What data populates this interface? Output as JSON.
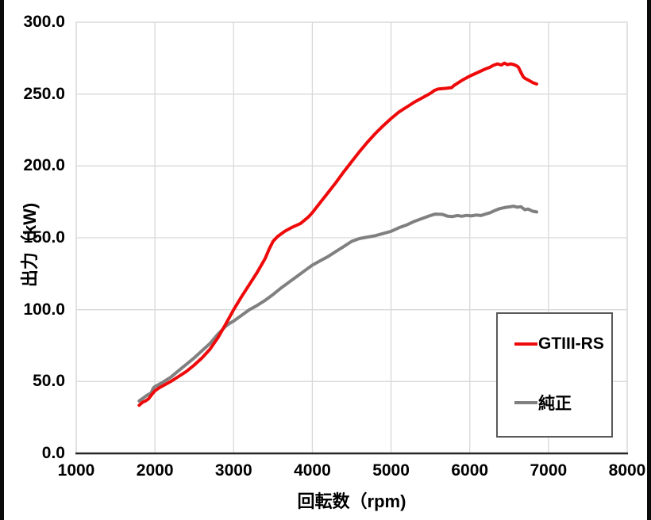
{
  "chart_data": {
    "type": "line",
    "title": "",
    "xlabel": "回転数（rpm)",
    "ylabel": "出力（kW)",
    "xlim": [
      1000,
      8000
    ],
    "ylim": [
      0,
      300
    ],
    "grid": true,
    "legend_position": "inside-right",
    "x_ticks": [
      1000,
      2000,
      3000,
      4000,
      5000,
      6000,
      7000,
      8000
    ],
    "x_tick_labels": [
      "1000",
      "2000",
      "3000",
      "4000",
      "5000",
      "6000",
      "7000",
      "8000"
    ],
    "y_ticks": [
      0,
      50,
      100,
      150,
      200,
      250,
      300
    ],
    "y_tick_labels": [
      "0.0",
      "50.0",
      "100.0",
      "150.0",
      "200.0",
      "250.0",
      "300.0"
    ],
    "colors": {
      "grid": "#d9d9d9",
      "plot_border": "#d9d9d9",
      "axis_line": "#262626",
      "text": "#000000",
      "legend_border": "#595959"
    },
    "series": [
      {
        "name": "GTIII-RS",
        "color": "#ee0a0a",
        "points": [
          [
            1800,
            33.5
          ],
          [
            1840,
            35.5
          ],
          [
            1880,
            36.5
          ],
          [
            1920,
            38
          ],
          [
            1960,
            41
          ],
          [
            2000,
            43.5
          ],
          [
            2050,
            45.5
          ],
          [
            2100,
            47
          ],
          [
            2200,
            50
          ],
          [
            2300,
            53.5
          ],
          [
            2400,
            57
          ],
          [
            2500,
            61.5
          ],
          [
            2600,
            66.5
          ],
          [
            2700,
            72.5
          ],
          [
            2800,
            80.5
          ],
          [
            2900,
            90
          ],
          [
            3000,
            100
          ],
          [
            3100,
            109
          ],
          [
            3200,
            117.5
          ],
          [
            3300,
            126
          ],
          [
            3400,
            135.5
          ],
          [
            3450,
            142
          ],
          [
            3500,
            147.5
          ],
          [
            3560,
            151
          ],
          [
            3650,
            154.5
          ],
          [
            3750,
            157.5
          ],
          [
            3850,
            160
          ],
          [
            3950,
            164.5
          ],
          [
            4000,
            167.5
          ],
          [
            4100,
            174.5
          ],
          [
            4200,
            181.5
          ],
          [
            4300,
            188.5
          ],
          [
            4400,
            196
          ],
          [
            4500,
            203
          ],
          [
            4600,
            210
          ],
          [
            4700,
            216.5
          ],
          [
            4800,
            222.5
          ],
          [
            4900,
            228
          ],
          [
            5000,
            233
          ],
          [
            5100,
            237.5
          ],
          [
            5200,
            241
          ],
          [
            5300,
            244.5
          ],
          [
            5400,
            247.5
          ],
          [
            5500,
            250.5
          ],
          [
            5550,
            252.5
          ],
          [
            5600,
            253.5
          ],
          [
            5700,
            254
          ],
          [
            5770,
            254.5
          ],
          [
            5800,
            256
          ],
          [
            5900,
            259.5
          ],
          [
            6000,
            262.5
          ],
          [
            6100,
            265
          ],
          [
            6200,
            267.5
          ],
          [
            6250,
            268.5
          ],
          [
            6300,
            270
          ],
          [
            6350,
            271
          ],
          [
            6400,
            270.2
          ],
          [
            6440,
            271.5
          ],
          [
            6480,
            270.5
          ],
          [
            6520,
            271
          ],
          [
            6560,
            270.5
          ],
          [
            6600,
            269.5
          ],
          [
            6620,
            268.5
          ],
          [
            6650,
            265
          ],
          [
            6680,
            262
          ],
          [
            6700,
            261
          ],
          [
            6750,
            259.5
          ],
          [
            6800,
            258
          ],
          [
            6850,
            257
          ]
        ]
      },
      {
        "name": "純正",
        "color": "#808080",
        "points": [
          [
            1800,
            36.5
          ],
          [
            1850,
            38.5
          ],
          [
            1900,
            40.5
          ],
          [
            1950,
            42
          ],
          [
            1980,
            45.5
          ],
          [
            2000,
            46.5
          ],
          [
            2100,
            49.5
          ],
          [
            2200,
            53
          ],
          [
            2300,
            57.5
          ],
          [
            2400,
            62
          ],
          [
            2500,
            66.5
          ],
          [
            2600,
            71.5
          ],
          [
            2700,
            76.5
          ],
          [
            2800,
            83
          ],
          [
            2900,
            88.5
          ],
          [
            2950,
            90.5
          ],
          [
            3000,
            92.1
          ],
          [
            3100,
            96
          ],
          [
            3200,
            100
          ],
          [
            3300,
            103
          ],
          [
            3400,
            106.5
          ],
          [
            3500,
            110.5
          ],
          [
            3600,
            115
          ],
          [
            3700,
            119
          ],
          [
            3800,
            123
          ],
          [
            3900,
            127
          ],
          [
            4000,
            131
          ],
          [
            4100,
            134
          ],
          [
            4200,
            137
          ],
          [
            4300,
            140.5
          ],
          [
            4400,
            144
          ],
          [
            4500,
            147.5
          ],
          [
            4600,
            149.5
          ],
          [
            4700,
            150.5
          ],
          [
            4800,
            151.5
          ],
          [
            4900,
            153
          ],
          [
            5000,
            154.5
          ],
          [
            5100,
            157
          ],
          [
            5200,
            159
          ],
          [
            5300,
            161.5
          ],
          [
            5400,
            163.5
          ],
          [
            5500,
            165.5
          ],
          [
            5560,
            166.5
          ],
          [
            5650,
            166.3
          ],
          [
            5720,
            165
          ],
          [
            5780,
            164.8
          ],
          [
            5840,
            165.5
          ],
          [
            5900,
            165
          ],
          [
            5960,
            165.6
          ],
          [
            6020,
            165.2
          ],
          [
            6080,
            165.8
          ],
          [
            6140,
            165.5
          ],
          [
            6200,
            166.5
          ],
          [
            6260,
            167.5
          ],
          [
            6320,
            169
          ],
          [
            6380,
            170.3
          ],
          [
            6440,
            171
          ],
          [
            6500,
            171.5
          ],
          [
            6560,
            172
          ],
          [
            6600,
            171.3
          ],
          [
            6650,
            171.6
          ],
          [
            6700,
            169.5
          ],
          [
            6740,
            170
          ],
          [
            6800,
            168.5
          ],
          [
            6850,
            168
          ]
        ]
      }
    ]
  }
}
